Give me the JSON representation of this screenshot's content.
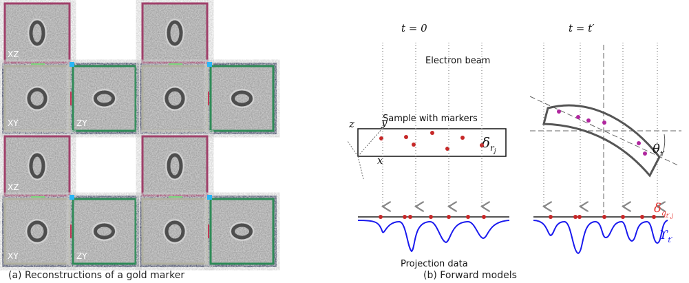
{
  "panel_a": {
    "caption": "(a) Reconstructions of a gold marker",
    "view_labels": [
      [
        "XZ",
        "XY",
        "ZY"
      ],
      [
        "XZ",
        "XY",
        "ZY"
      ]
    ]
  },
  "panel_b": {
    "caption": "(b) Forward models",
    "time_labels": [
      "t = 0",
      "t = t′"
    ],
    "beam_label": "Electron beam",
    "sample_label": "Sample with markers",
    "projection_label": "Projection data",
    "axes": {
      "z": "z",
      "y": "y",
      "x": "x"
    },
    "delta_r": {
      "base": "δ",
      "sub": "r",
      "subsub": "j"
    },
    "theta": {
      "base": "θ",
      "sub": "t′"
    },
    "delta_q": {
      "base": "δ",
      "sub": "q",
      "subsub": "t′,j"
    },
    "upsilon": {
      "base": "ϒ",
      "sub": "t′"
    }
  }
}
